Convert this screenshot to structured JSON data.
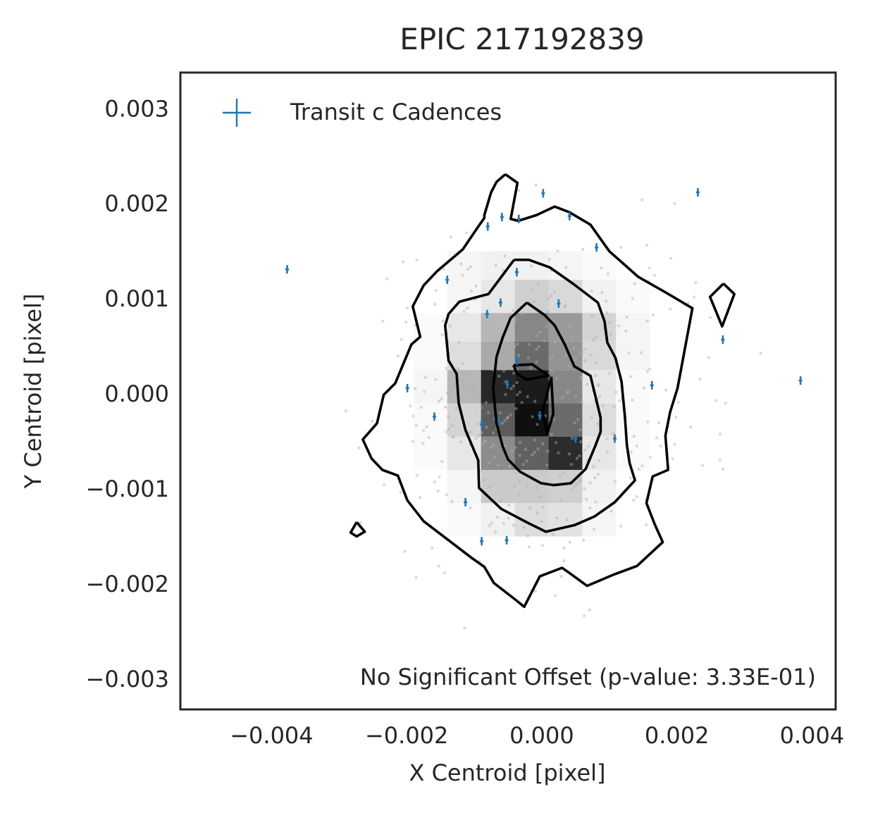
{
  "chart_data": {
    "type": "scatter",
    "title": "EPIC 217192839",
    "xlabel": "X Centroid [pixel]",
    "ylabel": "Y Centroid [pixel]",
    "xlim": [
      -0.00535,
      0.00435
    ],
    "ylim": [
      -0.00332,
      0.00338
    ],
    "x_ticks": [
      -0.004,
      -0.002,
      0.0,
      0.002,
      0.004
    ],
    "x_tick_labels": [
      "−0.004",
      "−0.002",
      "0.000",
      "0.002",
      "0.004"
    ],
    "y_ticks": [
      0.003,
      0.002,
      0.001,
      0.0,
      -0.001,
      -0.002,
      -0.003
    ],
    "y_tick_labels": [
      "0.003",
      "0.002",
      "0.001",
      "0.000",
      "−0.001",
      "−0.002",
      "−0.003"
    ],
    "grid": false,
    "legend": {
      "placement": "top-left",
      "label": "Transit c Cadences"
    },
    "annotation": "No Significant Offset (p-value: 3.33E-01)",
    "colors": {
      "transit_marker": "#1f77b4",
      "background_points": "#b0b0b0",
      "contour": "#000000",
      "frame": "#262626"
    },
    "series": [
      {
        "name": "Transit c Cadences",
        "points": [
          [
            -0.00377,
            0.00131
          ],
          [
            -0.0008,
            0.00176
          ],
          [
            -0.00059,
            0.00186
          ],
          [
            -0.00034,
            0.00184
          ],
          [
            2e-05,
            0.00211
          ],
          [
            0.00041,
            0.00187
          ],
          [
            0.00081,
            0.00154
          ],
          [
            0.00231,
            0.00212
          ],
          [
            -0.0014,
            0.0012
          ],
          [
            -0.00037,
            0.00128
          ],
          [
            -0.00081,
            0.00084
          ],
          [
            -0.00061,
            0.00096
          ],
          [
            0.00025,
            0.00095
          ],
          [
            0.00268,
            0.00057
          ],
          [
            0.00383,
            0.00014
          ],
          [
            -0.00037,
            0.00035
          ],
          [
            -0.00051,
            0.0001
          ],
          [
            -0.00199,
            6e-05
          ],
          [
            0.00163,
            9e-05
          ],
          [
            -0.00159,
            -0.00024
          ],
          [
            -0.00089,
            -0.00032
          ],
          [
            -0.00063,
            -0.00029
          ],
          [
            -3e-05,
            -0.00023
          ],
          [
            0.0005,
            -0.00047
          ],
          [
            0.00108,
            -0.00047
          ],
          [
            -0.00113,
            -0.00114
          ],
          [
            -0.00089,
            -0.00155
          ],
          [
            -0.00052,
            -0.00154
          ]
        ]
      }
    ],
    "density_grid": {
      "x_edges": [
        -0.0019,
        -0.0014,
        -0.0009,
        -0.0004,
        0.0001,
        0.0006,
        0.0011,
        0.0016
      ],
      "y_edges_top_to_bottom": [
        0.0015,
        0.0012,
        0.00085,
        0.00055,
        0.00025,
        -0.0001,
        -0.00045,
        -0.0008,
        -0.00115,
        -0.0015
      ],
      "rows": [
        [
          0.0,
          0.04,
          0.06,
          0.06,
          0.04,
          0.02,
          0.0
        ],
        [
          0.0,
          0.04,
          0.1,
          0.2,
          0.16,
          0.06,
          0.02
        ],
        [
          0.02,
          0.1,
          0.3,
          0.5,
          0.42,
          0.18,
          0.04
        ],
        [
          0.02,
          0.14,
          0.36,
          0.62,
          0.45,
          0.16,
          0.04
        ],
        [
          0.04,
          0.3,
          0.9,
          0.95,
          0.5,
          0.1,
          0.02
        ],
        [
          0.02,
          0.18,
          0.68,
          1.0,
          0.62,
          0.14,
          0.02
        ],
        [
          0.02,
          0.1,
          0.48,
          0.66,
          0.88,
          0.1,
          0.02
        ],
        [
          0.0,
          0.04,
          0.22,
          0.22,
          0.2,
          0.06,
          0.0
        ],
        [
          0.0,
          0.02,
          0.06,
          0.14,
          0.12,
          0.04,
          0.0
        ]
      ]
    },
    "contours": [
      [
        [
          -0.00054,
          0.00231
        ],
        [
          -0.00067,
          0.00223
        ],
        [
          -0.00075,
          0.00212
        ],
        [
          -0.00085,
          0.00188
        ],
        [
          -0.00085,
          0.00185
        ],
        [
          -0.00095,
          0.00175
        ],
        [
          -0.00117,
          0.00152
        ],
        [
          -0.00155,
          0.00129
        ],
        [
          -0.00175,
          0.00114
        ],
        [
          -0.00191,
          0.00092
        ],
        [
          -0.0018,
          0.0006
        ],
        [
          -0.00193,
          0.00052
        ],
        [
          -0.00217,
          0.00011
        ],
        [
          -0.00234,
          -1e-05
        ],
        [
          -0.00244,
          -0.00031
        ],
        [
          -0.00265,
          -0.00048
        ],
        [
          -0.00252,
          -0.00068
        ],
        [
          -0.00236,
          -0.0008
        ],
        [
          -0.00213,
          -0.00086
        ],
        [
          -0.00199,
          -0.00112
        ],
        [
          -0.00175,
          -0.00134
        ],
        [
          -0.00138,
          -0.00154
        ],
        [
          -0.00105,
          -0.00172
        ],
        [
          -0.00085,
          -0.00182
        ],
        [
          -0.00071,
          -0.00199
        ],
        [
          -0.0004,
          -0.00216
        ],
        [
          -0.00026,
          -0.00224
        ],
        [
          -3e-05,
          -0.00192
        ],
        [
          0.0003,
          -0.00183
        ],
        [
          0.0004,
          -0.00188
        ],
        [
          0.00067,
          -0.00202
        ],
        [
          0.00107,
          -0.0019
        ],
        [
          0.00141,
          -0.00181
        ],
        [
          0.00179,
          -0.00156
        ],
        [
          0.00167,
          -0.00137
        ],
        [
          0.00155,
          -0.00115
        ],
        [
          0.00164,
          -0.00087
        ],
        [
          0.00187,
          -0.0008
        ],
        [
          0.00183,
          -0.00044
        ],
        [
          0.0019,
          -0.00019
        ],
        [
          0.00201,
          6e-05
        ],
        [
          0.00223,
          0.0009
        ],
        [
          0.00185,
          0.00106
        ],
        [
          0.00143,
          0.00123
        ],
        [
          0.001,
          0.0015
        ],
        [
          0.00072,
          0.00178
        ],
        [
          0.00041,
          0.00191
        ],
        [
          0.00019,
          0.00197
        ],
        [
          -8e-05,
          0.00188
        ],
        [
          -0.00035,
          0.00182
        ],
        [
          -0.00046,
          0.00184
        ],
        [
          -0.00036,
          0.00222
        ],
        [
          -0.00054,
          0.00231
        ]
      ],
      [
        [
          -0.00041,
          0.00141
        ],
        [
          -0.00079,
          0.00105
        ],
        [
          -0.00122,
          0.00097
        ],
        [
          -0.00138,
          0.00084
        ],
        [
          -0.00143,
          0.00072
        ],
        [
          -0.00138,
          0.00035
        ],
        [
          -0.00126,
          0.00021
        ],
        [
          -0.00123,
          -0.0001
        ],
        [
          -0.00113,
          -0.00038
        ],
        [
          -0.00094,
          -0.0007
        ],
        [
          -0.00093,
          -0.00099
        ],
        [
          -0.0006,
          -0.00121
        ],
        [
          -0.0002,
          -0.00136
        ],
        [
          6e-05,
          -0.00145
        ],
        [
          0.00049,
          -0.00138
        ],
        [
          0.00078,
          -0.00129
        ],
        [
          0.00108,
          -0.00114
        ],
        [
          0.00138,
          -0.00091
        ],
        [
          0.0013,
          -0.00073
        ],
        [
          0.00126,
          -0.00054
        ],
        [
          0.00123,
          -0.00024
        ],
        [
          0.00118,
          0.00013
        ],
        [
          0.00109,
          0.00038
        ],
        [
          0.00097,
          0.00054
        ],
        [
          0.00093,
          0.00076
        ],
        [
          0.00083,
          0.00096
        ],
        [
          0.00046,
          0.00116
        ],
        [
          0.00012,
          0.00133
        ],
        [
          -0.00019,
          0.00141
        ],
        [
          -0.00041,
          0.00141
        ]
      ],
      [
        [
          -0.00022,
          0.00096
        ],
        [
          -0.00046,
          0.0008
        ],
        [
          -0.00058,
          0.00059
        ],
        [
          -0.00067,
          0.00039
        ],
        [
          -0.00072,
          6e-05
        ],
        [
          -0.00067,
          -0.00031
        ],
        [
          -0.00058,
          -0.00055
        ],
        [
          -0.0005,
          -0.00069
        ],
        [
          -0.00032,
          -0.00082
        ],
        [
          -1e-05,
          -0.00094
        ],
        [
          0.00018,
          -0.00096
        ],
        [
          0.00043,
          -0.00094
        ],
        [
          0.00065,
          -0.00079
        ],
        [
          0.00079,
          -0.00055
        ],
        [
          0.00087,
          -0.0004
        ],
        [
          0.00087,
          -0.00025
        ],
        [
          0.00072,
          0.00019
        ],
        [
          0.00048,
          0.00029
        ],
        [
          0.00034,
          0.00052
        ],
        [
          0.00019,
          0.00072
        ],
        [
          4e-05,
          0.00083
        ],
        [
          -0.00022,
          0.00096
        ]
      ],
      [
        [
          0.00269,
          0.00116
        ],
        [
          0.00285,
          0.00105
        ],
        [
          0.00267,
          0.00071
        ],
        [
          0.00249,
          0.00102
        ],
        [
          0.00269,
          0.00116
        ]
      ],
      [
        [
          -0.00274,
          -0.00135
        ],
        [
          -0.00283,
          -0.00146
        ],
        [
          -0.00274,
          -0.0015
        ],
        [
          -0.00262,
          -0.00145
        ],
        [
          -0.00274,
          -0.00135
        ]
      ],
      [
        [
          -0.00042,
          0.0003
        ],
        [
          -0.00036,
          0.00021
        ],
        [
          -0.00023,
          0.00015
        ],
        [
          0.0001,
          0.00019
        ],
        [
          -0.00014,
          0.00031
        ],
        [
          -0.00042,
          0.0003
        ]
      ],
      [
        [
          0.00014,
          0.00018
        ],
        [
          1e-05,
          -0.00019
        ],
        [
          8e-05,
          -0.00042
        ],
        [
          0.00017,
          -0.00021
        ],
        [
          0.00014,
          0.00018
        ]
      ]
    ]
  }
}
